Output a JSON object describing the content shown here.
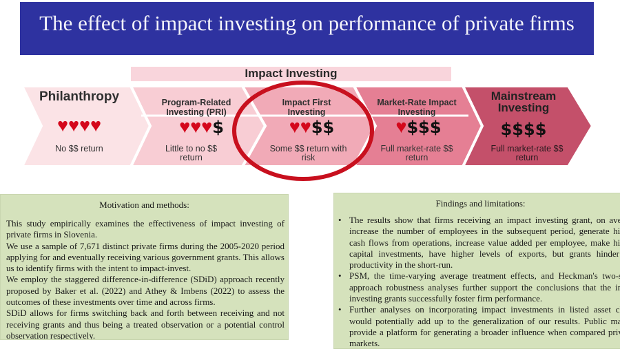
{
  "title": "The effect of impact investing on performance of private firms",
  "banner": "Impact Investing",
  "spectrum": [
    {
      "label": "Philanthropy",
      "hearts": 4,
      "dollars": "",
      "return": "No $$ return",
      "color": "#fbe3e6"
    },
    {
      "label": "Program-Related Investing (PRI)",
      "hearts": 3,
      "dollars": "$",
      "return": "Little to no $$ return",
      "color": "#f8cdd4"
    },
    {
      "label": "Impact First Investing",
      "hearts": 2,
      "dollars": "$$",
      "return": "Some $$ return with risk",
      "color": "#f1aab7",
      "highlighted": true
    },
    {
      "label": "Market-Rate Impact Investing",
      "hearts": 1,
      "dollars": "$$$",
      "return": "Full market-rate $$ return",
      "color": "#e57f94"
    },
    {
      "label": "Mainstream Investing",
      "hearts": 0,
      "dollars": "$$$$",
      "return": "Full market-rate $$ return",
      "color": "#c4506a"
    }
  ],
  "colors": {
    "title_bg": "#2e32a0",
    "box_bg": "#d5e2bc",
    "heart": "#d4071b",
    "circle": "#c8101e"
  },
  "motivation": {
    "heading": "Motivation and methods:",
    "paragraphs": [
      "This study empirically examines the effectiveness of impact investing of private firms in Slovenia.",
      "We use a sample of 7,671 distinct private firms during the 2005-2020 period applying for and eventually receiving various government grants. This allows us to identify firms with the intent to impact-invest.",
      "We employ the staggered difference-in-difference (SDiD) approach recently proposed by Baker et al. (2022) and Athey & Imbens (2022) to assess the outcomes of these investments over time and across firms.",
      "SDiD allows for firms switching back and forth between receiving and not receiving grants and thus being a treated observation or a potential control observation respectively."
    ]
  },
  "findings": {
    "heading": "Findings and limitations:",
    "bullets": [
      "The results show that firms receiving an impact investing grant, on averag increase the number of employees in the subsequent period, generate highe cash flows from operations, increase value added per employee, make highe capital investments, have higher levels of exports, but grants hinder fir productivity in the short-run.",
      "PSM, the time-varying average treatment effects, and Heckman's two-stag approach robustness analyses further support the conclusions that the impa investing grants successfully foster firm performance.",
      "Further analyses on incorporating impact investments in listed asset class would potentially add up to the generalization of our results. Public marke provide a platform for generating a broader influence when compared private markets."
    ]
  }
}
